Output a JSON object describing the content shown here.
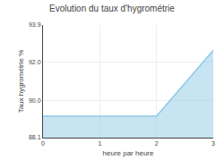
{
  "chart_data": {
    "type": "area",
    "title": "Evolution du taux d'hygrométrie",
    "x_label": "heure par heure",
    "y_label": "Taux hygrométrie %",
    "x": [
      0,
      2,
      3
    ],
    "values": [
      89.2,
      89.2,
      92.6
    ],
    "color": "#8ecae6",
    "xlim": [
      0,
      3
    ],
    "ylim": [
      88.1,
      93.9
    ],
    "xticks": [
      0,
      1,
      2,
      3
    ],
    "yticks": [
      88.1,
      {
        "value": 90,
        "label": "90.0"
      },
      {
        "value": 92,
        "label": "92.0"
      },
      93.9
    ],
    "grid": true
  }
}
